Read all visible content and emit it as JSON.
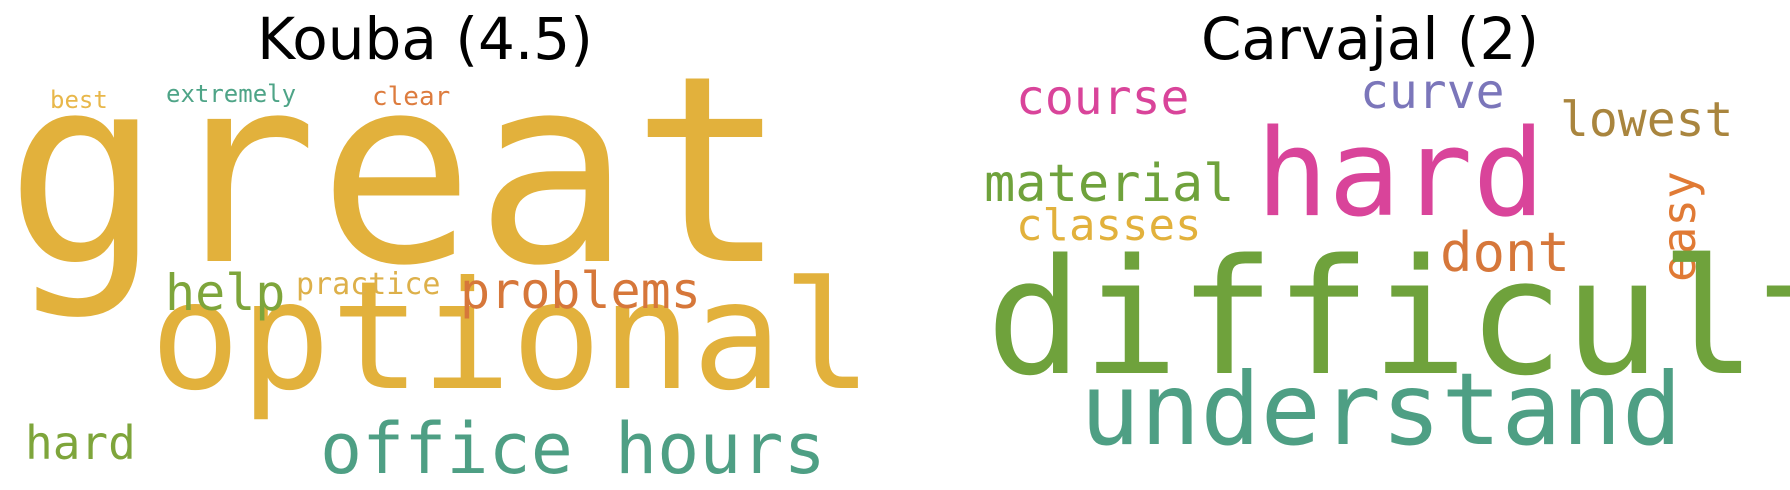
{
  "panels": [
    {
      "title": "Kouba (4.5)",
      "words": [
        {
          "text": "great",
          "color": "#E2B13C"
        },
        {
          "text": "optional",
          "color": "#E2B13C"
        },
        {
          "text": "office hours",
          "color": "#4E9F84"
        },
        {
          "text": "problems",
          "color": "#D6773A"
        },
        {
          "text": "help",
          "color": "#7EA53B"
        },
        {
          "text": "practice",
          "color": "#DDB04A"
        },
        {
          "text": "hard",
          "color": "#7EA53B"
        },
        {
          "text": "best",
          "color": "#E8B74A"
        },
        {
          "text": "extremely",
          "color": "#4EA487"
        },
        {
          "text": "clear",
          "color": "#DD7C3E"
        }
      ]
    },
    {
      "title": "Carvajal (2)",
      "words": [
        {
          "text": "course",
          "color": "#D9449A"
        },
        {
          "text": "curve",
          "color": "#7B76BA"
        },
        {
          "text": "lowest",
          "color": "#A9853E"
        },
        {
          "text": "material",
          "color": "#6FA23C"
        },
        {
          "text": "hard",
          "color": "#D9449A"
        },
        {
          "text": "classes",
          "color": "#E2B13C"
        },
        {
          "text": "dont",
          "color": "#D6773A"
        },
        {
          "text": "easy",
          "color": "#E07A35"
        },
        {
          "text": "difficult",
          "color": "#6FA23C"
        },
        {
          "text": "understand",
          "color": "#4E9F84"
        }
      ]
    }
  ]
}
